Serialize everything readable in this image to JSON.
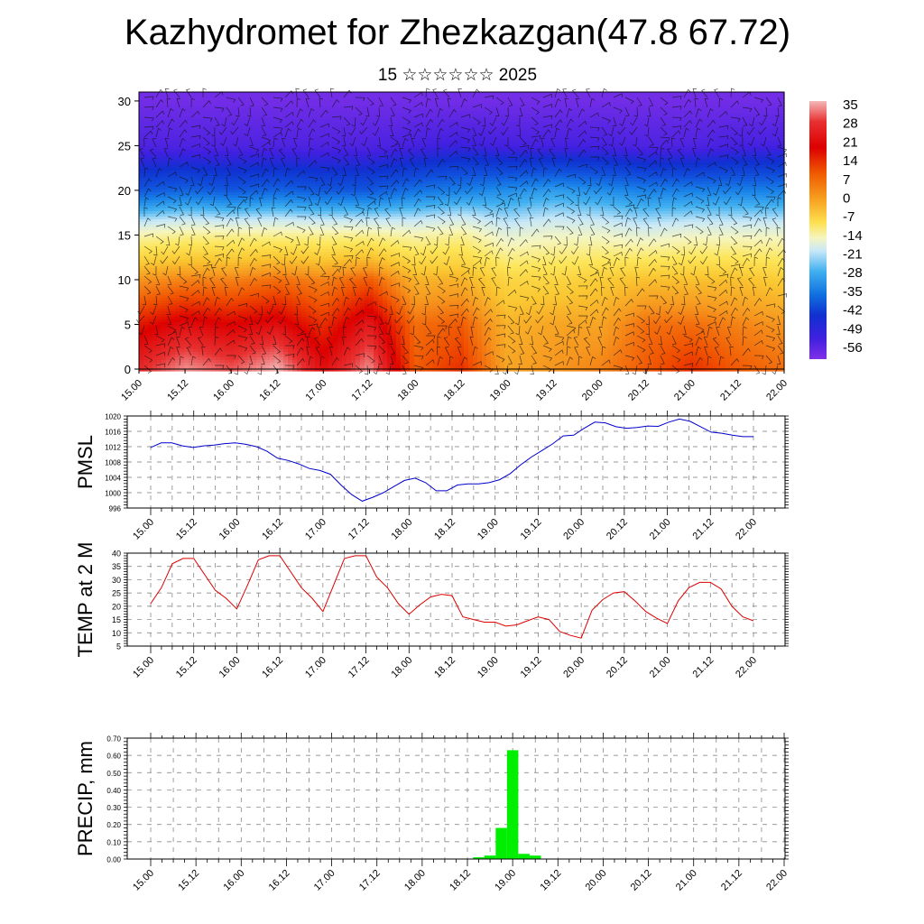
{
  "header": {
    "title": "Kazhydromet for Zhezkazgan(47.8 67.72)",
    "subtitle": "15 ☆☆☆☆☆☆ 2025"
  },
  "chart_data": [
    {
      "type": "heatmap",
      "id": "wind-temp-crosssection",
      "x_ticks": [
        "15.00",
        "15.12",
        "16.00",
        "16.12",
        "17.00",
        "17.12",
        "18.00",
        "18.12",
        "19.00",
        "19.12",
        "20.00",
        "20.12",
        "21.00",
        "21.12",
        "22.00"
      ],
      "y_ticks": [
        "0",
        "5",
        "10",
        "15",
        "20",
        "25",
        "30"
      ],
      "ylim": [
        0,
        31
      ],
      "colorbar_labels": [
        "35",
        "28",
        "21",
        "14",
        "7",
        "0",
        "-7",
        "-14",
        "-21",
        "-28",
        "-35",
        "-42",
        "-49",
        "-56"
      ],
      "colorbar_range": [
        -63,
        42
      ],
      "overlay": "wind barbs",
      "temperature_profile_by_level": [
        {
          "level": 0,
          "values": [
            34,
            40,
            37,
            42,
            30,
            40,
            20,
            24,
            12,
            14,
            16,
            20,
            24,
            20,
            18
          ]
        },
        {
          "level": 5,
          "values": [
            26,
            30,
            28,
            30,
            24,
            32,
            18,
            20,
            10,
            12,
            12,
            18,
            18,
            16,
            14
          ]
        },
        {
          "level": 10,
          "values": [
            14,
            16,
            16,
            18,
            16,
            20,
            10,
            10,
            4,
            4,
            6,
            8,
            8,
            8,
            6
          ]
        },
        {
          "level": 15,
          "values": [
            -6,
            -4,
            -4,
            -4,
            -4,
            -4,
            -6,
            -4,
            -10,
            -8,
            -8,
            -10,
            -8,
            -8,
            -8
          ]
        },
        {
          "level": 20,
          "values": [
            -34,
            -32,
            -34,
            -32,
            -34,
            -34,
            -30,
            -28,
            -26,
            -24,
            -26,
            -28,
            -28,
            -28,
            -28
          ]
        },
        {
          "level": 25,
          "values": [
            -52,
            -52,
            -52,
            -52,
            -52,
            -52,
            -50,
            -48,
            -50,
            -50,
            -50,
            -52,
            -52,
            -50,
            -50
          ]
        },
        {
          "level": 30,
          "values": [
            -60,
            -60,
            -60,
            -60,
            -60,
            -60,
            -60,
            -60,
            -60,
            -60,
            -60,
            -60,
            -60,
            -60,
            -60
          ]
        }
      ]
    },
    {
      "type": "line",
      "id": "pmsl",
      "ylabel": "PMSL",
      "x_ticks": [
        "15.00",
        "15.12",
        "16.00",
        "16.12",
        "17.00",
        "17.12",
        "18.00",
        "18.12",
        "19.00",
        "19.12",
        "20.00",
        "20.12",
        "21.00",
        "21.12",
        "22.00"
      ],
      "y_ticks": [
        "1020",
        "1016",
        "1012",
        "1008",
        "1004",
        "1000",
        "996"
      ],
      "ylim": [
        996,
        1020
      ],
      "color": "#0000cc",
      "series": [
        {
          "values": [
            1011.8,
            1013.0,
            1013.0,
            1012.2,
            1011.8,
            1012.2,
            1012.4,
            1012.8,
            1013.0,
            1012.6,
            1012.0,
            1010.8,
            1009.0,
            1008.4,
            1007.5,
            1006.3,
            1005.8,
            1004.8,
            1002.0,
            999.5,
            997.8,
            998.8,
            1000.0,
            1001.6,
            1003.2,
            1003.8,
            1002.6,
            1000.5,
            1000.5,
            1002.0,
            1002.3,
            1002.3,
            1002.6,
            1003.4,
            1005.0,
            1007.3,
            1009.3,
            1011.0,
            1012.7,
            1014.8,
            1015.0,
            1016.8,
            1018.4,
            1018.2,
            1017.2,
            1016.8,
            1017.0,
            1017.4,
            1017.3,
            1018.4,
            1019.2,
            1018.6,
            1017.2,
            1015.8,
            1015.5,
            1015.0,
            1014.6,
            1014.6
          ]
        }
      ]
    },
    {
      "type": "line",
      "id": "temp2m",
      "ylabel": "TEMP at 2 M",
      "x_ticks": [
        "15.00",
        "15.12",
        "16.00",
        "16.12",
        "17.00",
        "17.12",
        "18.00",
        "18.12",
        "19.00",
        "19.12",
        "20.00",
        "20.12",
        "21.00",
        "21.12",
        "22.00"
      ],
      "y_ticks": [
        "40",
        "35",
        "30",
        "25",
        "20",
        "15",
        "10",
        "5"
      ],
      "ylim": [
        5,
        40
      ],
      "color": "#dd0000",
      "series": [
        {
          "values": [
            21.0,
            27.0,
            36.0,
            38.0,
            38.0,
            32.0,
            26.0,
            23.0,
            19.0,
            28.0,
            37.5,
            39.0,
            39.0,
            33.0,
            27.0,
            23.0,
            18.0,
            28.0,
            38.0,
            39.0,
            39.0,
            31.0,
            27.0,
            21.0,
            17.0,
            20.5,
            23.5,
            24.5,
            24.0,
            16.0,
            15.0,
            14.0,
            14.0,
            12.5,
            13.0,
            14.5,
            16.0,
            15.0,
            10.5,
            9.0,
            8.0,
            18.5,
            22.5,
            25.0,
            25.5,
            22.0,
            18.0,
            15.5,
            13.5,
            22.0,
            27.0,
            29.0,
            29.0,
            26.5,
            20.0,
            16.0,
            14.5
          ]
        }
      ]
    },
    {
      "type": "bar",
      "id": "precip",
      "ylabel": "PRECIP, mm",
      "x_ticks": [
        "15.00",
        "15.12",
        "16.00",
        "16.12",
        "17.00",
        "17.12",
        "18.00",
        "18.12",
        "19.00",
        "19.12",
        "20.00",
        "20.12",
        "21.00",
        "21.12",
        "22.00"
      ],
      "y_ticks": [
        "0.70",
        "0.60",
        "0.50",
        "0.40",
        "0.30",
        "0.20",
        "0.10",
        "0.00"
      ],
      "ylim": [
        0,
        0.7
      ],
      "color": "#00ee00",
      "bars": [
        {
          "x_hours": 87,
          "value": 0.01
        },
        {
          "x_hours": 90,
          "value": 0.02
        },
        {
          "x_hours": 93,
          "value": 0.18
        },
        {
          "x_hours": 96,
          "value": 0.63
        },
        {
          "x_hours": 99,
          "value": 0.03
        },
        {
          "x_hours": 102,
          "value": 0.02
        }
      ]
    }
  ]
}
